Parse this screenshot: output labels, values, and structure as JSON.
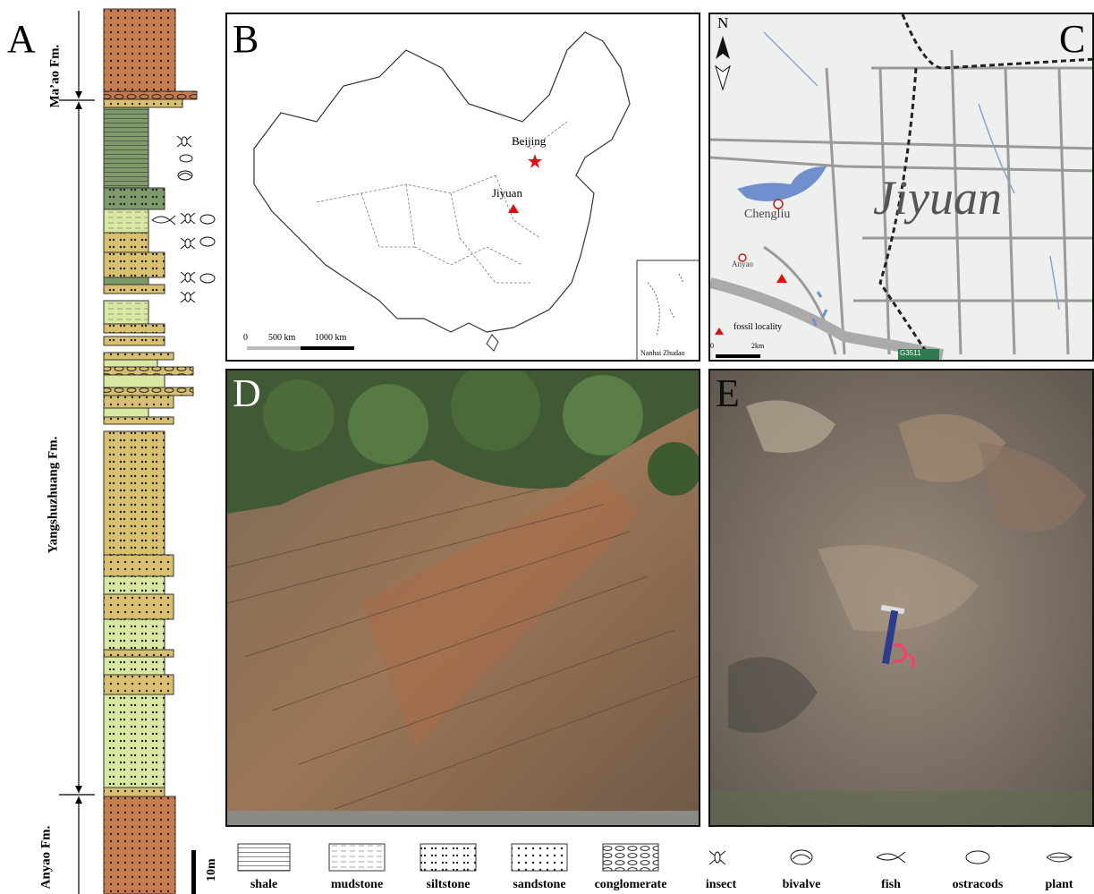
{
  "panels": {
    "a": "A",
    "b": "B",
    "c": "C",
    "d": "D",
    "e": "E"
  },
  "formations": {
    "top": "Ma’ao Fm.",
    "middle": "Yangshuzhuang Fm.",
    "bottom": "Anyao Fm."
  },
  "scale_bar": "10m",
  "map_b": {
    "beijing": "Beijing",
    "jiyuan": "Jiyuan",
    "scale_0": "0",
    "scale_500": "500 km",
    "scale_1000": "1000 km",
    "inset": "Nanhai Zhudao"
  },
  "map_c": {
    "north": "N",
    "city": "Jiyuan",
    "chengliu": "Chengliu",
    "anyao": "Anyao",
    "fossil": "fossil locality",
    "scale_0": "0",
    "scale_2": "2km",
    "road": "G3511"
  },
  "legend": {
    "shale": "shale",
    "mudstone": "mudstone",
    "siltstone": "siltstone",
    "sandstone": "sandstone",
    "conglomerate": "conglomerate",
    "insect": "insect",
    "bivalve": "bivalve",
    "fish": "fish",
    "ostracods": "ostracods",
    "plant": "plant"
  },
  "colors": {
    "rust": "#c77b4e",
    "olive": "#7e9a6a",
    "sand": "#d8c06e",
    "lightgreen": "#d8e8a0",
    "water": "#6f8fce",
    "fossil": "#e01010"
  }
}
